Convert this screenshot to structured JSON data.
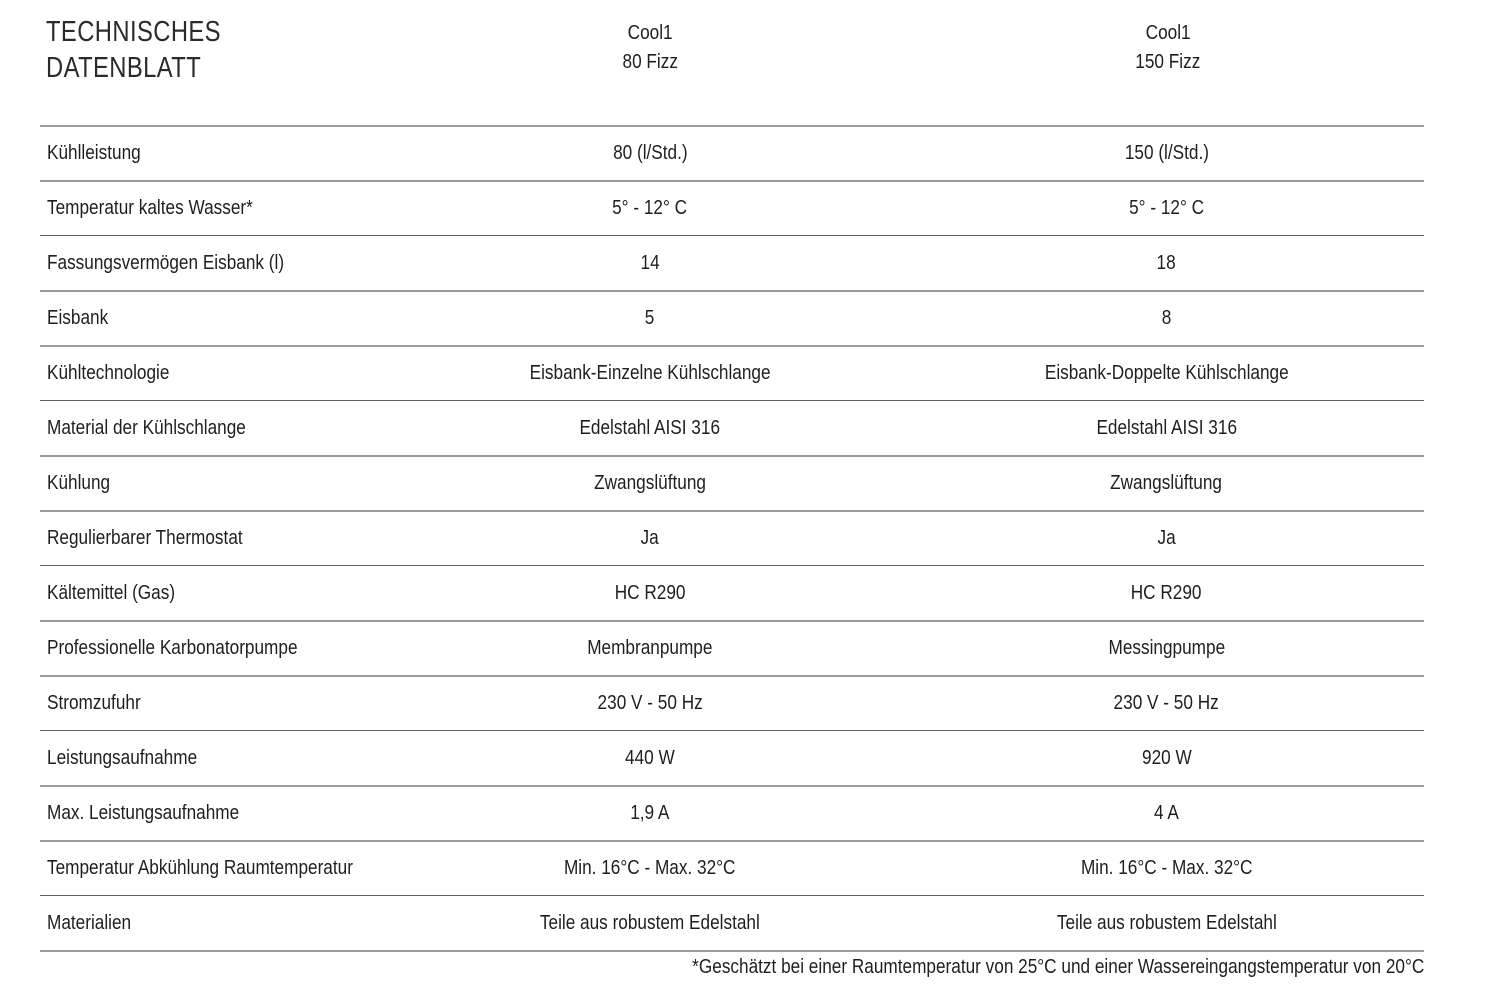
{
  "page": {
    "title_line1": "TECHNISCHES",
    "title_line2": "DATENBLATT"
  },
  "columns": [
    {
      "brand": "Cool1",
      "model": "80 Fizz"
    },
    {
      "brand": "Cool1",
      "model": "150 Fizz"
    }
  ],
  "table": {
    "rows": [
      {
        "label": "Kühlleistung",
        "col1": "80 (l/Std.)",
        "col2": "150 (l/Std.)"
      },
      {
        "label": "Temperatur kaltes Wasser*",
        "col1": "5° - 12° C",
        "col2": "5° - 12° C"
      },
      {
        "label": "Fassungsvermögen Eisbank (l)",
        "col1": "14",
        "col2": "18"
      },
      {
        "label": "Eisbank",
        "col1": "5",
        "col2": "8"
      },
      {
        "label": "Kühltechnologie",
        "col1": "Eisbank-Einzelne Kühlschlange",
        "col2": "Eisbank-Doppelte Kühlschlange"
      },
      {
        "label": "Material der Kühlschlange",
        "col1": "Edelstahl AISI 316",
        "col2": "Edelstahl AISI 316"
      },
      {
        "label": "Kühlung",
        "col1": "Zwangslüftung",
        "col2": "Zwangslüftung"
      },
      {
        "label": "Regulierbarer Thermostat",
        "col1": "Ja",
        "col2": "Ja"
      },
      {
        "label": "Kältemittel (Gas)",
        "col1": "HC R290",
        "col2": "HC R290"
      },
      {
        "label": "Professionelle Karbonatorpumpe",
        "col1": "Membranpumpe",
        "col2": "Messingpumpe"
      },
      {
        "label": "Stromzufuhr",
        "col1": "230 V - 50 Hz",
        "col2": "230 V - 50 Hz"
      },
      {
        "label": "Leistungsaufnahme",
        "col1": "440 W",
        "col2": "920 W"
      },
      {
        "label": "Max. Leistungsaufnahme",
        "col1": "1,9 A",
        "col2": "4 A"
      },
      {
        "label": "Temperatur Abkühlung Raumtemperatur",
        "col1": "Min. 16°C - Max. 32°C",
        "col2": "Min. 16°C - Max. 32°C"
      },
      {
        "label": "Materialien",
        "col1": "Teile aus robustem Edelstahl",
        "col2": "Teile aus robustem Edelstahl"
      }
    ]
  },
  "footnote": "*Geschätzt bei einer Raumtemperatur von 25°C und einer Wassereingangstemperatur von 20°C",
  "colors": {
    "text": "#1f1f1f",
    "rule_light": "#9b9b9b",
    "rule_dark": "#5f5f5f",
    "background": "#ffffff"
  }
}
